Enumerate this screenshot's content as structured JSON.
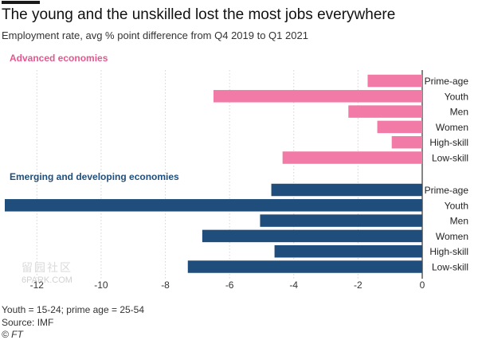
{
  "header": {
    "title": "The young and the unskilled lost the most jobs everywhere",
    "subtitle": "Employment rate, avg % point difference from Q4 2019 to Q1 2021"
  },
  "colors": {
    "advanced": "#f27aa6",
    "advanced_label": "#e9558f",
    "emerging": "#1f4e7c",
    "emerging_label": "#1f4e7c",
    "grid": "#d4d4d4",
    "text": "#333333"
  },
  "chart_data": {
    "type": "bar",
    "orientation": "horizontal",
    "xlim": [
      -13,
      0
    ],
    "xticks": [
      -12,
      -10,
      -8,
      -6,
      -4,
      -2,
      0
    ],
    "xtick_labels": [
      "-12",
      "-10",
      "-8",
      "-6",
      "-4",
      "-2",
      "0"
    ],
    "grid": true,
    "groups": [
      {
        "name": "Advanced economies",
        "categories": [
          "Prime-age",
          "Youth",
          "Men",
          "Women",
          "High-skill",
          "Low-skill"
        ],
        "values": [
          -1.7,
          -6.5,
          -2.3,
          -1.4,
          -0.95,
          -4.35
        ]
      },
      {
        "name": "Emerging and developing economies",
        "categories": [
          "Prime-age",
          "Youth",
          "Men",
          "Women",
          "High-skill",
          "Low-skill"
        ],
        "values": [
          -4.7,
          -13.0,
          -5.05,
          -6.85,
          -4.6,
          -7.3
        ]
      }
    ]
  },
  "footer": {
    "note": "Youth = 15-24; prime age = 25-54",
    "source": "Source: IMF",
    "credit": "© FT"
  },
  "watermark": {
    "glyphs": "留园社区",
    "site": "6PARK.COM"
  }
}
